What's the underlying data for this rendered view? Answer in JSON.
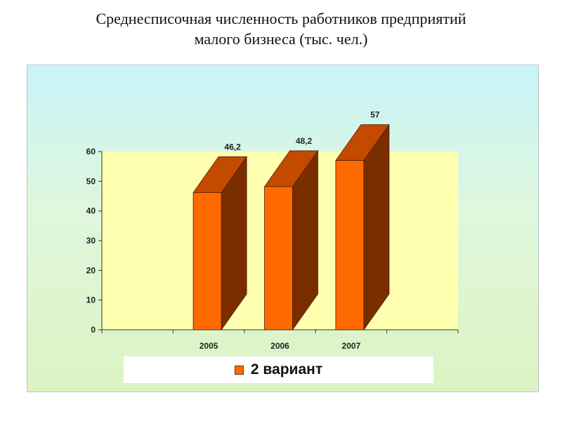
{
  "title_lines": [
    "Среднесписочная численность работников предприятий",
    "малого бизнеса (тыс. чел.)"
  ],
  "chart_data": {
    "type": "bar",
    "three_d": true,
    "categories": [
      "",
      "2005",
      "2006",
      "2007",
      ""
    ],
    "series": [
      {
        "name": "2 вариант",
        "values": [
          null,
          46.2,
          48.2,
          57,
          null
        ],
        "data_labels": [
          "",
          "46,2",
          "48,2",
          "57",
          ""
        ]
      }
    ],
    "yticks": [
      0,
      10,
      20,
      30,
      40,
      50,
      60
    ],
    "ylim": [
      0,
      60
    ],
    "legend_position": "bottom",
    "grid": false
  },
  "colors": {
    "bar_front": "#ff6a00",
    "bar_top": "#c44a00",
    "bar_side": "#7a2e00",
    "bar_outline": "#4a1a00",
    "plot_area": "#ffffb0",
    "legend_swatch": "#ff6a00"
  }
}
